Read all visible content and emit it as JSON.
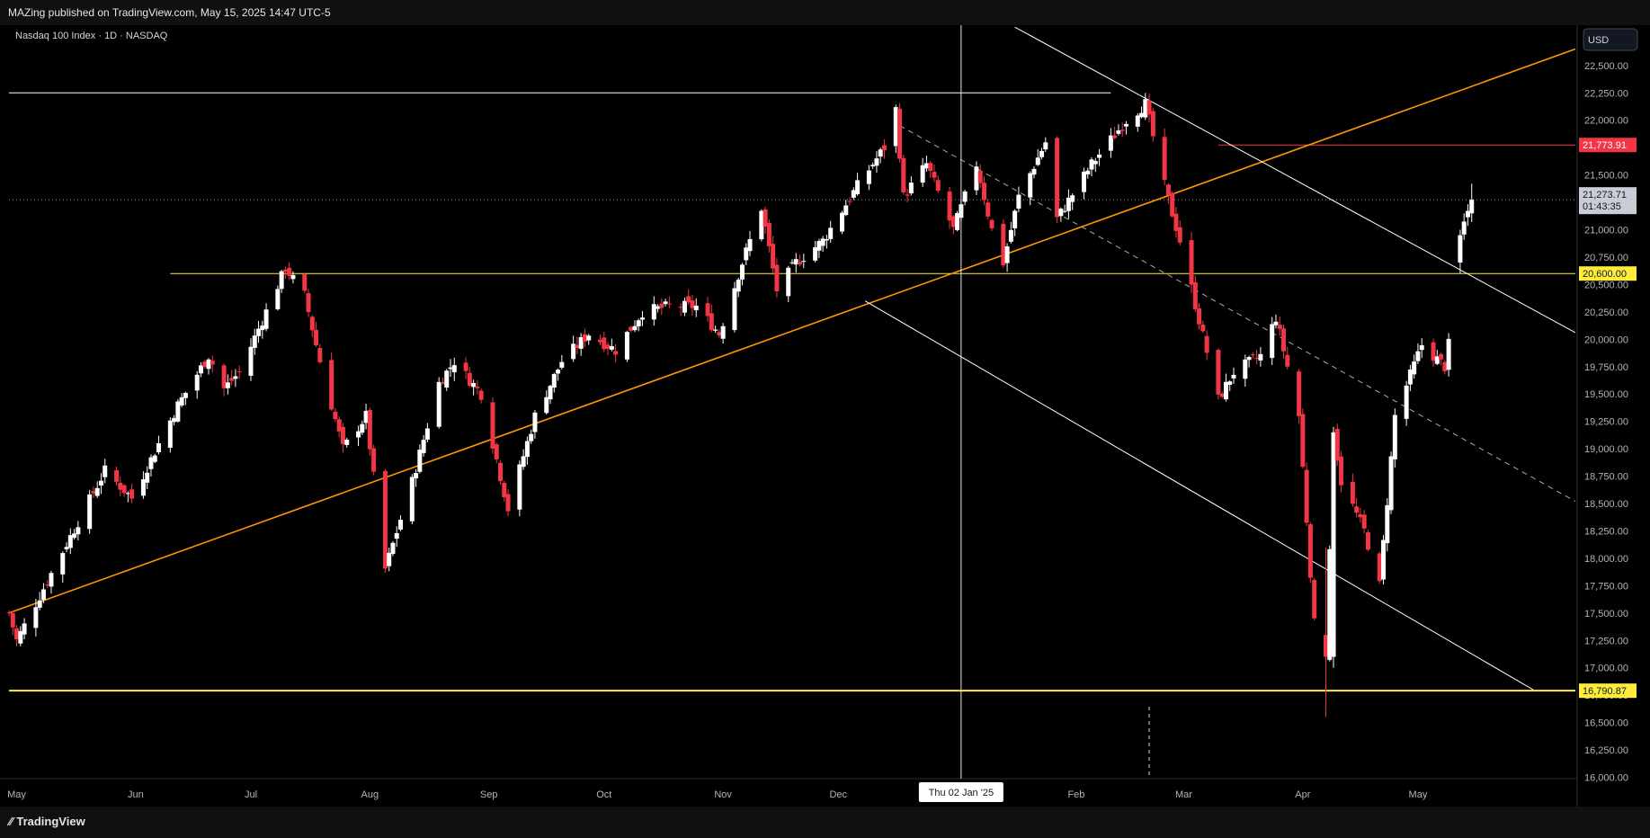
{
  "header": {
    "publisher_text": "MAZing published on TradingView.com, May 15, 2025 14:47 UTC-5"
  },
  "symbol": {
    "title": "Nasdaq 100 Index · 1D · NASDAQ"
  },
  "currency": "USD",
  "footer": {
    "brand": "TradingView"
  },
  "crosshair": {
    "date_label": "Thu 02 Jan '25"
  },
  "price_tags": {
    "red_level": "21,773.91",
    "last_price": "21,273.71",
    "countdown": "01:43:35",
    "yellow_level": "20,600.00",
    "support_level": "16,790.87"
  },
  "colors": {
    "up": "#ffffff",
    "down": "#f23645",
    "orange": "#ff9800",
    "yellow": "#ffeb3b",
    "red_line": "#f23645",
    "background": "#000000"
  },
  "chart_data": {
    "type": "candlestick",
    "title": "Nasdaq 100 Index · 1D · NASDAQ",
    "x_axis": {
      "type": "date",
      "range": [
        "2024-04-29",
        "2025-06-11"
      ],
      "tick_labels": [
        {
          "label": "May",
          "date": "2024-05-01"
        },
        {
          "label": "Jun",
          "date": "2024-06-01"
        },
        {
          "label": "Jul",
          "date": "2024-07-01"
        },
        {
          "label": "Aug",
          "date": "2024-08-01"
        },
        {
          "label": "Sep",
          "date": "2024-09-01"
        },
        {
          "label": "Oct",
          "date": "2024-10-01"
        },
        {
          "label": "Nov",
          "date": "2024-11-01"
        },
        {
          "label": "Dec",
          "date": "2024-12-01"
        },
        {
          "label": "Feb",
          "date": "2025-02-01"
        },
        {
          "label": "Mar",
          "date": "2025-03-01"
        },
        {
          "label": "Apr",
          "date": "2025-04-01"
        },
        {
          "label": "May",
          "date": "2025-05-01"
        }
      ]
    },
    "y_axis": {
      "range": [
        16000,
        22800
      ],
      "ticks": [
        16000,
        16250,
        16500,
        16750,
        17000,
        17250,
        17500,
        17750,
        18000,
        18250,
        18500,
        18750,
        19000,
        19250,
        19500,
        19750,
        20000,
        20250,
        20500,
        20750,
        21000,
        21250,
        21500,
        21750,
        22000,
        22250,
        22500
      ],
      "tick_labels": [
        "16,000.00",
        "16,250.00",
        "16,500.00",
        "16,750.00",
        "17,000.00",
        "17,250.00",
        "17,500.00",
        "17,750.00",
        "18,000.00",
        "18,250.00",
        "18,500.00",
        "18,750.00",
        "19,000.00",
        "19,250.00",
        "19,500.00",
        "19,750.00",
        "20,000.00",
        "20,250.00",
        "20,500.00",
        "20,750.00",
        "21,000.00",
        "21,250.00",
        "21,500.00",
        "21,750.00",
        "22,000.00",
        "22,250.00",
        "22,500.00"
      ]
    },
    "grid": false,
    "anchors": [
      [
        "2024-04-29",
        17500
      ],
      [
        "2024-05-01",
        17250
      ],
      [
        "2024-05-15",
        18200
      ],
      [
        "2024-05-24",
        18800
      ],
      [
        "2024-05-31",
        18550
      ],
      [
        "2024-06-12",
        19400
      ],
      [
        "2024-06-20",
        19850
      ],
      [
        "2024-06-24",
        19550
      ],
      [
        "2024-06-28",
        19700
      ],
      [
        "2024-07-10",
        20650
      ],
      [
        "2024-07-15",
        20400
      ],
      [
        "2024-07-19",
        19800
      ],
      [
        "2024-07-25",
        19000
      ],
      [
        "2024-07-31",
        19300
      ],
      [
        "2024-08-05",
        17900
      ],
      [
        "2024-08-12",
        18700
      ],
      [
        "2024-08-19",
        19600
      ],
      [
        "2024-08-23",
        19800
      ],
      [
        "2024-08-30",
        19500
      ],
      [
        "2024-09-06",
        18450
      ],
      [
        "2024-09-13",
        19300
      ],
      [
        "2024-09-20",
        19800
      ],
      [
        "2024-09-27",
        20050
      ],
      [
        "2024-10-04",
        19900
      ],
      [
        "2024-10-11",
        20250
      ],
      [
        "2024-10-18",
        20300
      ],
      [
        "2024-10-25",
        20300
      ],
      [
        "2024-10-31",
        20050
      ],
      [
        "2024-11-06",
        20700
      ],
      [
        "2024-11-11",
        21200
      ],
      [
        "2024-11-15",
        20450
      ],
      [
        "2024-11-20",
        20700
      ],
      [
        "2024-11-27",
        20900
      ],
      [
        "2024-12-06",
        21400
      ],
      [
        "2024-12-13",
        21750
      ],
      [
        "2024-12-16",
        22100
      ],
      [
        "2024-12-18",
        21300
      ],
      [
        "2024-12-24",
        21600
      ],
      [
        "2024-12-31",
        21000
      ],
      [
        "2025-01-06",
        21600
      ],
      [
        "2025-01-10",
        21000
      ],
      [
        "2025-01-13",
        20700
      ],
      [
        "2025-01-17",
        21300
      ],
      [
        "2025-01-24",
        21800
      ],
      [
        "2025-01-27",
        21100
      ],
      [
        "2025-02-05",
        21600
      ],
      [
        "2025-02-14",
        22000
      ],
      [
        "2025-02-19",
        22150
      ],
      [
        "2025-02-24",
        21400
      ],
      [
        "2025-02-28",
        20900
      ],
      [
        "2025-03-10",
        19450
      ],
      [
        "2025-03-14",
        19700
      ],
      [
        "2025-03-21",
        19850
      ],
      [
        "2025-03-25",
        20200
      ],
      [
        "2025-03-31",
        19300
      ],
      [
        "2025-04-04",
        17400
      ],
      [
        "2025-04-07",
        17100
      ],
      [
        "2025-04-09",
        19150
      ],
      [
        "2025-04-11",
        18700
      ],
      [
        "2025-04-17",
        18250
      ],
      [
        "2025-04-21",
        17750
      ],
      [
        "2025-04-25",
        19300
      ],
      [
        "2025-05-02",
        19950
      ],
      [
        "2025-05-08",
        19750
      ],
      [
        "2025-05-09",
        19950
      ],
      [
        "2025-05-12",
        20950
      ],
      [
        "2025-05-15",
        21273.71
      ]
    ],
    "key_bars": [
      {
        "date": "2025-04-07",
        "open": 17300,
        "high": 18100,
        "low": 16550,
        "close": 17100
      },
      {
        "date": "2025-04-09",
        "open": 17100,
        "high": 19200,
        "low": 17000,
        "close": 19150
      },
      {
        "date": "2025-05-12",
        "open": 20700,
        "high": 21000,
        "low": 20600,
        "close": 20950
      },
      {
        "date": "2025-05-15",
        "open": 21150,
        "high": 21420,
        "low": 21070,
        "close": 21273.71
      }
    ],
    "last_close": 21273.71,
    "levels": [
      {
        "type": "horizontal",
        "value": 22250,
        "color": "#ffffff",
        "from": "2024-04-29",
        "to": "2025-02-10"
      },
      {
        "type": "horizontal",
        "value": 21773.91,
        "color": "#f23645",
        "from": "2025-03-10",
        "to": "2025-06-11"
      },
      {
        "type": "horizontal",
        "value": 20600,
        "color": "#ffeb3b",
        "from": "2024-06-10",
        "to": "2025-06-11"
      },
      {
        "type": "horizontal",
        "value": 16790.87,
        "color": "#ffeb3b",
        "from": "2024-04-29",
        "to": "2025-06-11"
      }
    ],
    "trendlines": [
      {
        "name": "",
        "color": "#ff9800",
        "points": [
          [
            "2024-04-29",
            17500
          ],
          [
            "2025-06-11",
            22650
          ]
        ]
      },
      {
        "name": "",
        "color": "#ffffff",
        "points": [
          [
            "2025-01-16",
            22850
          ],
          [
            "2025-06-11",
            20060
          ]
        ]
      },
      {
        "name": "",
        "color": "#ffffff",
        "points": [
          [
            "2024-12-08",
            20350
          ],
          [
            "2025-05-31",
            16800
          ]
        ]
      },
      {
        "name": "",
        "color": "#aaaaaa",
        "dashed": true,
        "points": [
          [
            "2024-12-17",
            21950
          ],
          [
            "2025-06-11",
            18520
          ]
        ]
      }
    ],
    "crosshair_date": "2025-01-02"
  }
}
